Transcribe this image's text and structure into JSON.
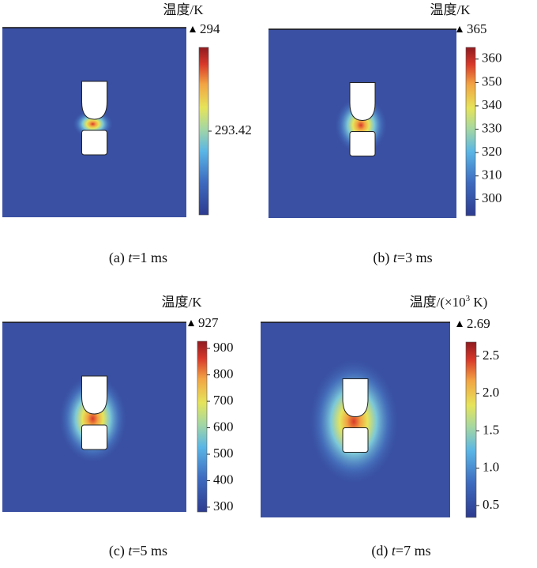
{
  "panels": [
    {
      "colorbar_title": [
        "温度/K"
      ],
      "max": "294",
      "range": [
        292.84,
        294
      ],
      "ticks": [
        293.42
      ],
      "caption": {
        "prefix": "(a) ",
        "var": "t",
        "suffix": "=1 ms"
      }
    },
    {
      "colorbar_title": [
        "温度/K"
      ],
      "max": "365",
      "range": [
        293,
        365
      ],
      "ticks": [
        360,
        350,
        340,
        330,
        320,
        310,
        300
      ],
      "caption": {
        "prefix": "(b) ",
        "var": "t",
        "suffix": "=3 ms"
      }
    },
    {
      "colorbar_title": [
        "温度/K"
      ],
      "max": "927",
      "range": [
        282,
        927
      ],
      "ticks": [
        900,
        800,
        700,
        600,
        500,
        400,
        300
      ],
      "caption": {
        "prefix": "(c) ",
        "var": "t",
        "suffix": "=5 ms"
      }
    },
    {
      "colorbar_title": [
        "温度/(×10",
        "3",
        " K)"
      ],
      "max": "2.69",
      "range": [
        0.34,
        2.69
      ],
      "ticks": [
        2.5,
        {
          "value": 2.0,
          "label": "2.0"
        },
        1.5,
        {
          "value": 1.0,
          "label": "1.0"
        },
        0.5
      ],
      "caption": {
        "prefix": "(d) ",
        "var": "t",
        "suffix": "=7 ms"
      }
    }
  ]
}
